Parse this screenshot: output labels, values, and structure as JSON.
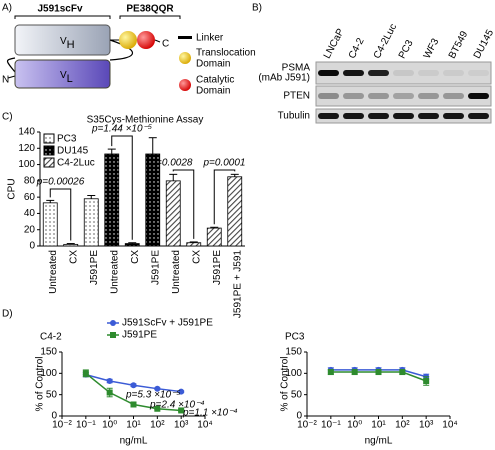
{
  "panel_a": {
    "label": "A)",
    "scfv": "J591scFv",
    "toxin": "PE38QQR",
    "vh": {
      "letter": "V",
      "sub": "H"
    },
    "vl": {
      "letter": "V",
      "sub": "L"
    },
    "n_term": "N",
    "c_term": "C",
    "legend": {
      "linker": "Linker",
      "translocation": [
        "Translocation",
        "Domain"
      ],
      "catalytic": [
        "Catalytic",
        "Domain"
      ]
    }
  },
  "panel_b": {
    "label": "B)",
    "lanes": [
      "LNCaP",
      "C4-2",
      "C4-2Luc",
      "PC3",
      "WF3",
      "BT549",
      "DU145"
    ],
    "rows": [
      [
        "PSMA",
        "(mAb J591)"
      ],
      [
        "PTEN"
      ],
      [
        "Tubulin"
      ]
    ]
  },
  "panel_c_label": "C)",
  "panel_d_label": "D)",
  "chart_data": [
    {
      "type": "bar",
      "title": "S35Cys-Methionine Assay",
      "y_label": "CPU",
      "categories": [
        "Untreated",
        "CX",
        "J591PE",
        "Untreated",
        "CX",
        "J591PE",
        "Untreated",
        "CX",
        "J591PE",
        "J591PE + J591"
      ],
      "series": [
        {
          "name": "PC3",
          "pattern": "dots-light",
          "color": "#000000",
          "values": [
            53,
            2,
            58,
            null,
            null,
            null,
            null,
            null,
            null,
            null
          ],
          "errors": [
            3,
            1,
            4,
            null,
            null,
            null,
            null,
            null,
            null,
            null
          ]
        },
        {
          "name": "DU145",
          "pattern": "dots-dark",
          "color": "#000000",
          "values": [
            null,
            null,
            null,
            113,
            3,
            113,
            null,
            null,
            null,
            null
          ],
          "errors": [
            null,
            null,
            null,
            6,
            1,
            20,
            null,
            null,
            null,
            null
          ]
        },
        {
          "name": "C4-2Luc",
          "pattern": "hatch",
          "color": "#000000",
          "values": [
            null,
            null,
            null,
            null,
            null,
            null,
            80,
            4,
            22,
            85
          ],
          "errors": [
            null,
            null,
            null,
            null,
            null,
            null,
            8,
            1,
            1,
            3
          ]
        }
      ],
      "ylim": [
        0,
        140
      ],
      "yticks": [
        0,
        20,
        40,
        60,
        80,
        100,
        120,
        140
      ],
      "legend": "upper left",
      "annotations": [
        "p=0.00026",
        "p=1.44 ×10⁻⁵",
        "p=0.0028",
        "p=0.0001"
      ]
    },
    {
      "type": "line",
      "title": "C4-2",
      "x_label": "ng/mL",
      "y_label": "% of Control",
      "xscale": "log",
      "x": [
        0.1,
        1,
        10,
        100,
        1000
      ],
      "series": [
        {
          "name": "J591ScFv + J591PE",
          "color": "#3b5bd6",
          "marker": "circle",
          "values": [
            97,
            82,
            72,
            64,
            57
          ],
          "errors": [
            5,
            4,
            3,
            2,
            2
          ]
        },
        {
          "name": "J591PE",
          "color": "#2e8b2e",
          "marker": "square",
          "values": [
            100,
            55,
            27,
            17,
            13
          ],
          "errors": [
            8,
            10,
            4,
            2,
            2
          ]
        }
      ],
      "xlim": [
        0.01,
        10000
      ],
      "xticks": [
        {
          "value": 0.01,
          "label": "10⁻²"
        },
        {
          "value": 0.1,
          "label": "10⁻¹"
        },
        {
          "value": 1,
          "label": "10⁰"
        },
        {
          "value": 10,
          "label": "10¹"
        },
        {
          "value": 100,
          "label": "10²"
        },
        {
          "value": 1000,
          "label": "10³"
        },
        {
          "value": 10000,
          "label": "10⁴"
        }
      ],
      "ylim": [
        0,
        150
      ],
      "yticks": [
        0,
        50,
        100,
        150
      ],
      "legend": "upper right",
      "annotations": [
        "p=5.3 ×10⁻⁵",
        "p=2.4 ×10⁻⁴",
        "p=1.1 ×10⁻⁴"
      ]
    },
    {
      "type": "line",
      "title": "PC3",
      "x_label": "ng/mL",
      "y_label": "% of Control",
      "xscale": "log",
      "x": [
        0.1,
        1,
        10,
        100,
        1000
      ],
      "series": [
        {
          "color": "#3b5bd6",
          "marker": "circle",
          "values": [
            108,
            108,
            108,
            108,
            92
          ],
          "errors": [
            5,
            5,
            5,
            5,
            6
          ]
        },
        {
          "color": "#2e8b2e",
          "marker": "square",
          "values": [
            103,
            103,
            103,
            103,
            82
          ],
          "errors": [
            5,
            5,
            5,
            5,
            10
          ]
        }
      ],
      "xlim": [
        0.01,
        10000
      ],
      "xticks": [
        {
          "value": 0.01,
          "label": "10⁻²"
        },
        {
          "value": 0.1,
          "label": "10⁻¹"
        },
        {
          "value": 1,
          "label": "10⁰"
        },
        {
          "value": 10,
          "label": "10¹"
        },
        {
          "value": 100,
          "label": "10²"
        },
        {
          "value": 1000,
          "label": "10³"
        },
        {
          "value": 10000,
          "label": "10⁴"
        }
      ],
      "ylim": [
        0,
        150
      ],
      "yticks": [
        0,
        50,
        100,
        150
      ]
    }
  ]
}
